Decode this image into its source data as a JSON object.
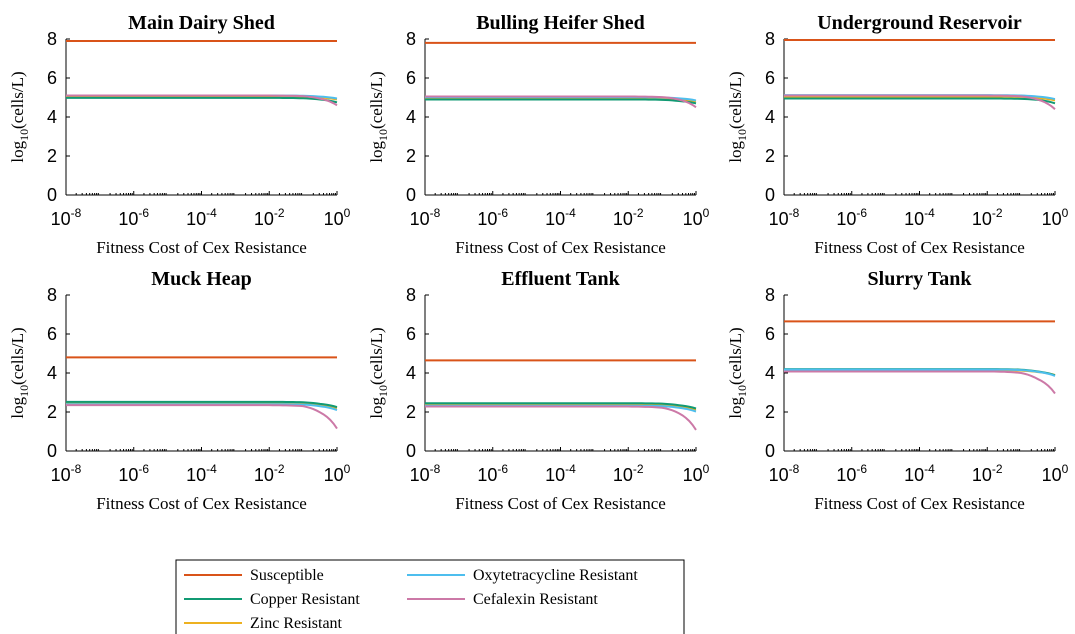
{
  "legend": {
    "placement": "bottom-center",
    "entries": [
      {
        "name": "Susceptible",
        "color": "#D95319"
      },
      {
        "name": "Copper Resistant",
        "color": "#119A73"
      },
      {
        "name": "Zinc Resistant",
        "color": "#EDB120"
      },
      {
        "name": "Oxytetracycline Resistant",
        "color": "#4DBEEE"
      },
      {
        "name": "Cefalexin Resistant",
        "color": "#CC79A7"
      }
    ]
  },
  "chart_data": [
    {
      "type": "line",
      "title": "Main Dairy Shed",
      "xlabel": "Fitness Cost of Cex Resistance",
      "ylabel_base": "log",
      "ylabel_sub": "10",
      "ylabel_rest": "(cells/L)",
      "xscale": "log",
      "xlim_exp": [
        -8,
        0
      ],
      "xticks": [
        {
          "base": "10",
          "exp": "-8"
        },
        {
          "base": "10",
          "exp": "-6"
        },
        {
          "base": "10",
          "exp": "-4"
        },
        {
          "base": "10",
          "exp": "-2"
        },
        {
          "base": "10",
          "exp": "0"
        }
      ],
      "ylim": [
        0,
        8
      ],
      "yticks": [
        "0",
        "2",
        "4",
        "6",
        "8"
      ],
      "x": [
        1e-08,
        0.01,
        0.1,
        0.3,
        1
      ],
      "series": [
        {
          "name": "Susceptible",
          "values": [
            7.9,
            7.9,
            7.9,
            7.9,
            7.9
          ]
        },
        {
          "name": "Zinc Resistant",
          "values": [
            5.05,
            5.05,
            5.04,
            5.0,
            4.9
          ]
        },
        {
          "name": "Copper Resistant",
          "values": [
            4.98,
            4.98,
            4.96,
            4.9,
            4.75
          ]
        },
        {
          "name": "Oxytetracycline Resistant",
          "values": [
            5.1,
            5.1,
            5.09,
            5.05,
            4.95
          ]
        },
        {
          "name": "Cefalexin Resistant",
          "values": [
            5.1,
            5.1,
            5.07,
            4.95,
            4.6
          ]
        }
      ]
    },
    {
      "type": "line",
      "title": "Bulling Heifer Shed",
      "xlabel": "Fitness Cost of Cex Resistance",
      "ylabel_base": "log",
      "ylabel_sub": "10",
      "ylabel_rest": "(cells/L)",
      "xscale": "log",
      "xlim_exp": [
        -8,
        0
      ],
      "xticks": [
        {
          "base": "10",
          "exp": "-8"
        },
        {
          "base": "10",
          "exp": "-6"
        },
        {
          "base": "10",
          "exp": "-4"
        },
        {
          "base": "10",
          "exp": "-2"
        },
        {
          "base": "10",
          "exp": "0"
        }
      ],
      "ylim": [
        0,
        8
      ],
      "yticks": [
        "0",
        "2",
        "4",
        "6",
        "8"
      ],
      "x": [
        1e-08,
        0.01,
        0.1,
        0.3,
        1
      ],
      "series": [
        {
          "name": "Susceptible",
          "values": [
            7.8,
            7.8,
            7.8,
            7.8,
            7.8
          ]
        },
        {
          "name": "Zinc Resistant",
          "values": [
            4.95,
            4.95,
            4.94,
            4.9,
            4.8
          ]
        },
        {
          "name": "Copper Resistant",
          "values": [
            4.9,
            4.9,
            4.88,
            4.82,
            4.7
          ]
        },
        {
          "name": "Oxytetracycline Resistant",
          "values": [
            5.02,
            5.02,
            5.0,
            4.96,
            4.85
          ]
        },
        {
          "name": "Cefalexin Resistant",
          "values": [
            5.05,
            5.05,
            5.02,
            4.9,
            4.5
          ]
        }
      ]
    },
    {
      "type": "line",
      "title": "Underground Reservoir",
      "xlabel": "Fitness Cost of Cex Resistance",
      "ylabel_base": "log",
      "ylabel_sub": "10",
      "ylabel_rest": "(cells/L)",
      "xscale": "log",
      "xlim_exp": [
        -8,
        0
      ],
      "xticks": [
        {
          "base": "10",
          "exp": "-8"
        },
        {
          "base": "10",
          "exp": "-6"
        },
        {
          "base": "10",
          "exp": "-4"
        },
        {
          "base": "10",
          "exp": "-2"
        },
        {
          "base": "10",
          "exp": "0"
        }
      ],
      "ylim": [
        0,
        8
      ],
      "yticks": [
        "0",
        "2",
        "4",
        "6",
        "8"
      ],
      "x": [
        1e-08,
        0.01,
        0.1,
        0.3,
        1
      ],
      "series": [
        {
          "name": "Susceptible",
          "values": [
            7.95,
            7.95,
            7.95,
            7.95,
            7.95
          ]
        },
        {
          "name": "Zinc Resistant",
          "values": [
            5.05,
            5.05,
            5.03,
            4.98,
            4.85
          ]
        },
        {
          "name": "Copper Resistant",
          "values": [
            4.95,
            4.95,
            4.93,
            4.88,
            4.7
          ]
        },
        {
          "name": "Oxytetracycline Resistant",
          "values": [
            5.12,
            5.12,
            5.1,
            5.05,
            4.92
          ]
        },
        {
          "name": "Cefalexin Resistant",
          "values": [
            5.1,
            5.1,
            5.06,
            4.9,
            4.4
          ]
        }
      ]
    },
    {
      "type": "line",
      "title": "Muck Heap",
      "xlabel": "Fitness Cost of Cex Resistance",
      "ylabel_base": "log",
      "ylabel_sub": "10",
      "ylabel_rest": "(cells/L)",
      "xscale": "log",
      "xlim_exp": [
        -8,
        0
      ],
      "xticks": [
        {
          "base": "10",
          "exp": "-8"
        },
        {
          "base": "10",
          "exp": "-6"
        },
        {
          "base": "10",
          "exp": "-4"
        },
        {
          "base": "10",
          "exp": "-2"
        },
        {
          "base": "10",
          "exp": "0"
        }
      ],
      "ylim": [
        0,
        8
      ],
      "yticks": [
        "0",
        "2",
        "4",
        "6",
        "8"
      ],
      "x": [
        1e-08,
        0.01,
        0.1,
        0.3,
        1
      ],
      "series": [
        {
          "name": "Susceptible",
          "values": [
            4.8,
            4.8,
            4.8,
            4.8,
            4.8
          ]
        },
        {
          "name": "Zinc Resistant",
          "values": [
            2.45,
            2.45,
            2.42,
            2.35,
            2.2
          ]
        },
        {
          "name": "Copper Resistant",
          "values": [
            2.52,
            2.52,
            2.5,
            2.42,
            2.25
          ]
        },
        {
          "name": "Oxytetracycline Resistant",
          "values": [
            2.4,
            2.4,
            2.38,
            2.3,
            2.1
          ]
        },
        {
          "name": "Cefalexin Resistant",
          "values": [
            2.35,
            2.35,
            2.3,
            2.0,
            1.15
          ]
        }
      ]
    },
    {
      "type": "line",
      "title": "Effluent Tank",
      "xlabel": "Fitness Cost of Cex Resistance",
      "ylabel_base": "log",
      "ylabel_sub": "10",
      "ylabel_rest": "(cells/L)",
      "xscale": "log",
      "xlim_exp": [
        -8,
        0
      ],
      "xticks": [
        {
          "base": "10",
          "exp": "-8"
        },
        {
          "base": "10",
          "exp": "-6"
        },
        {
          "base": "10",
          "exp": "-4"
        },
        {
          "base": "10",
          "exp": "-2"
        },
        {
          "base": "10",
          "exp": "0"
        }
      ],
      "ylim": [
        0,
        8
      ],
      "yticks": [
        "0",
        "2",
        "4",
        "6",
        "8"
      ],
      "x": [
        1e-08,
        0.01,
        0.1,
        0.3,
        1
      ],
      "series": [
        {
          "name": "Susceptible",
          "values": [
            4.65,
            4.65,
            4.65,
            4.65,
            4.65
          ]
        },
        {
          "name": "Zinc Resistant",
          "values": [
            2.38,
            2.38,
            2.35,
            2.28,
            2.12
          ]
        },
        {
          "name": "Copper Resistant",
          "values": [
            2.45,
            2.45,
            2.43,
            2.35,
            2.18
          ]
        },
        {
          "name": "Oxytetracycline Resistant",
          "values": [
            2.32,
            2.32,
            2.3,
            2.22,
            2.02
          ]
        },
        {
          "name": "Cefalexin Resistant",
          "values": [
            2.28,
            2.28,
            2.22,
            1.95,
            1.08
          ]
        }
      ]
    },
    {
      "type": "line",
      "title": "Slurry Tank",
      "xlabel": "Fitness Cost of Cex Resistance",
      "ylabel_base": "log",
      "ylabel_sub": "10",
      "ylabel_rest": "(cells/L)",
      "xscale": "log",
      "xlim_exp": [
        -8,
        0
      ],
      "xticks": [
        {
          "base": "10",
          "exp": "-8"
        },
        {
          "base": "10",
          "exp": "-6"
        },
        {
          "base": "10",
          "exp": "-4"
        },
        {
          "base": "10",
          "exp": "-2"
        },
        {
          "base": "10",
          "exp": "0"
        }
      ],
      "ylim": [
        0,
        8
      ],
      "yticks": [
        "0",
        "2",
        "4",
        "6",
        "8"
      ],
      "x": [
        1e-08,
        0.01,
        0.1,
        0.3,
        1
      ],
      "series": [
        {
          "name": "Susceptible",
          "values": [
            6.65,
            6.65,
            6.65,
            6.65,
            6.65
          ]
        },
        {
          "name": "Zinc Resistant",
          "values": [
            4.15,
            4.15,
            4.12,
            4.05,
            3.9
          ]
        },
        {
          "name": "Copper Resistant",
          "values": [
            4.2,
            4.2,
            4.17,
            4.08,
            3.88
          ]
        },
        {
          "name": "Oxytetracycline Resistant",
          "values": [
            4.18,
            4.18,
            4.15,
            4.06,
            3.85
          ]
        },
        {
          "name": "Cefalexin Resistant",
          "values": [
            4.08,
            4.08,
            4.0,
            3.7,
            2.95
          ]
        }
      ]
    }
  ]
}
